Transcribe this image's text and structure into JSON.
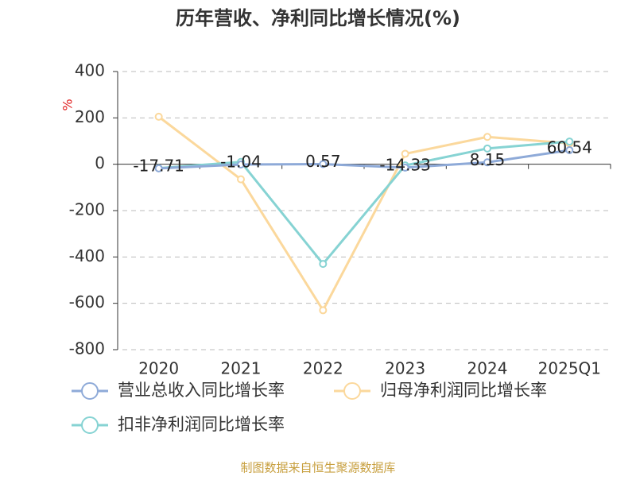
{
  "chart_data": {
    "type": "line",
    "title": "历年营收、净利同比增长情况(%)",
    "y_label": "%",
    "categories": [
      "2020",
      "2021",
      "2022",
      "2023",
      "2024",
      "2025Q1"
    ],
    "series": [
      {
        "name": "营业总收入同比增长率",
        "color": "#8eaad8",
        "values": [
          -17.71,
          -1.04,
          0.57,
          -14.33,
          8.15,
          60.54
        ],
        "show_labels": true
      },
      {
        "name": "归母净利润同比增长率",
        "color": "#fbd89c",
        "values": [
          205,
          -65,
          -630,
          45,
          118,
          90
        ]
      },
      {
        "name": "扣非净利润同比增长率",
        "color": "#86d3d3",
        "values": [
          -17,
          10,
          -430,
          -5,
          68,
          98
        ]
      }
    ],
    "ylim": [
      -800,
      400
    ],
    "yticks": [
      -800,
      -600,
      -400,
      -200,
      0,
      200,
      400
    ],
    "grid": true,
    "source": "制图数据来自恒生聚源数据库"
  }
}
